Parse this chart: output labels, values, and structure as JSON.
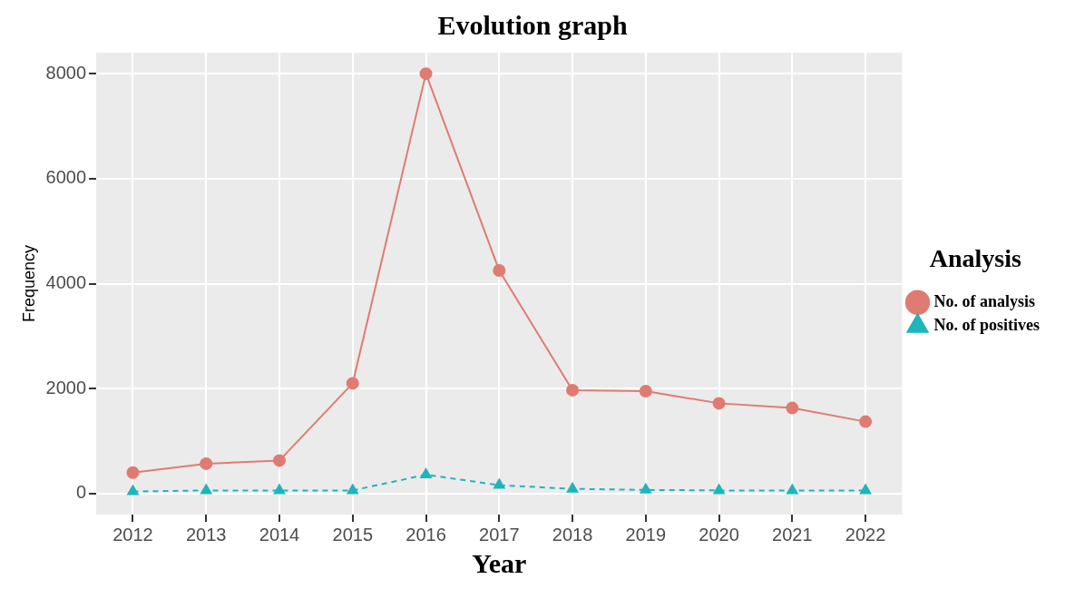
{
  "chart_data": {
    "type": "line",
    "title": "Evolution graph",
    "xlabel": "Year",
    "ylabel": "Frequency",
    "legend_title": "Analysis",
    "legend": "right",
    "categories": [
      "2012",
      "2013",
      "2014",
      "2015",
      "2016",
      "2017",
      "2018",
      "2019",
      "2020",
      "2021",
      "2022"
    ],
    "ylim": [
      -400,
      8400
    ],
    "yticks": [
      0,
      2000,
      4000,
      6000,
      8000
    ],
    "grid": true,
    "series": [
      {
        "name": "No. of analysis",
        "color": "#e07b72",
        "marker": "circle",
        "line_style": "solid",
        "values": [
          400,
          570,
          630,
          2100,
          8000,
          4250,
          1970,
          1950,
          1720,
          1630,
          1370
        ]
      },
      {
        "name": "No. of positives",
        "color": "#1fb5bb",
        "marker": "triangle",
        "line_style": "dashed",
        "values": [
          40,
          60,
          60,
          60,
          360,
          160,
          90,
          70,
          60,
          60,
          60
        ]
      }
    ]
  }
}
